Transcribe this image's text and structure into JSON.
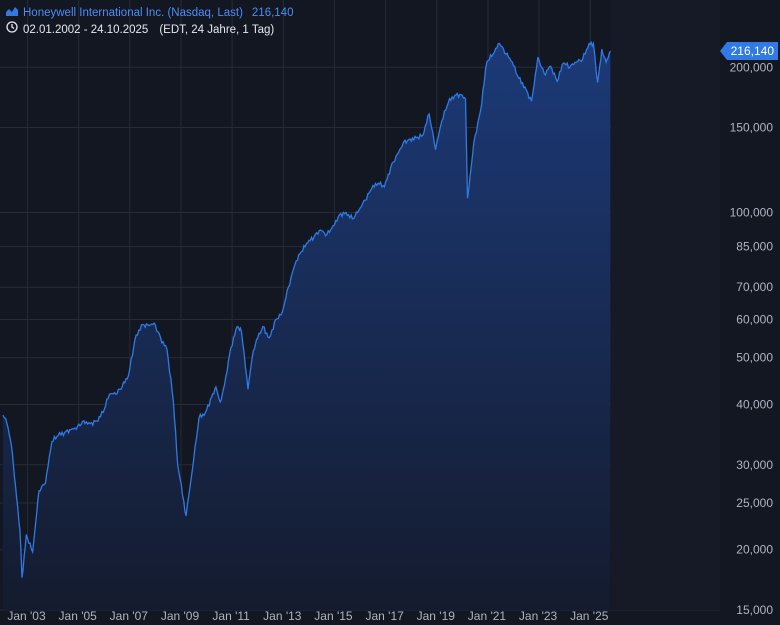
{
  "header": {
    "title": "Honeywell International Inc. (Nasdaq, Last)",
    "last_value": "216,140",
    "date_range": "02.01.2002 - 24.10.2025",
    "meta": "(EDT, 24 Jahre, 1 Tag)",
    "icons": {
      "series": "area-chart-icon",
      "time": "clock-icon"
    }
  },
  "colors": {
    "background": "#131722",
    "line": "#2f7ae5",
    "area_top": "#1c3a78",
    "area_bottom": "#141b2e",
    "grid": "#262b38",
    "price_tag": "#2f7ae5"
  },
  "chart_data": {
    "type": "area",
    "y_scale": "log",
    "ylim": [
      15000,
      230000
    ],
    "xlim": [
      "2002-01-02",
      "2025-10-24"
    ],
    "x_ticks": [
      "Jan '03",
      "Jan '05",
      "Jan '07",
      "Jan '09",
      "Jan '11",
      "Jan '13",
      "Jan '15",
      "Jan '17",
      "Jan '19",
      "Jan '21",
      "Jan '23",
      "Jan '25"
    ],
    "y_ticks": [
      {
        "value": 15000,
        "label": "15,000"
      },
      {
        "value": 20000,
        "label": "20,000"
      },
      {
        "value": 25000,
        "label": "25,000"
      },
      {
        "value": 30000,
        "label": "30,000"
      },
      {
        "value": 40000,
        "label": "40,000"
      },
      {
        "value": 50000,
        "label": "50,000"
      },
      {
        "value": 60000,
        "label": "60,000"
      },
      {
        "value": 70000,
        "label": "70,000"
      },
      {
        "value": 85000,
        "label": "85,000"
      },
      {
        "value": 100000,
        "label": "100,000"
      },
      {
        "value": 150000,
        "label": "150,000"
      },
      {
        "value": 200000,
        "label": "200,000"
      }
    ],
    "last_price": {
      "value": 216140,
      "label": "216,140"
    },
    "series": [
      {
        "x": [
          "2002-01",
          "2002-03",
          "2002-05",
          "2002-07",
          "2002-09",
          "2002-10",
          "2002-12",
          "2003-03",
          "2003-06",
          "2003-09",
          "2003-12",
          "2004-03",
          "2004-06",
          "2004-09",
          "2004-12",
          "2005-03",
          "2005-06",
          "2005-09",
          "2005-12",
          "2006-03",
          "2006-06",
          "2006-09",
          "2006-12",
          "2007-03",
          "2007-06",
          "2007-09",
          "2007-12",
          "2008-03",
          "2008-06",
          "2008-09",
          "2008-11",
          "2009-03",
          "2009-06",
          "2009-09",
          "2009-12",
          "2010-03",
          "2010-05",
          "2010-07",
          "2010-09",
          "2010-12",
          "2011-03",
          "2011-05",
          "2011-08",
          "2011-10",
          "2011-12",
          "2012-03",
          "2012-06",
          "2012-09",
          "2012-12",
          "2013-03",
          "2013-06",
          "2013-09",
          "2013-12",
          "2014-03",
          "2014-06",
          "2014-09",
          "2014-12",
          "2015-03",
          "2015-06",
          "2015-09",
          "2015-12",
          "2016-03",
          "2016-06",
          "2016-09",
          "2016-12",
          "2017-03",
          "2017-06",
          "2017-09",
          "2017-12",
          "2018-03",
          "2018-06",
          "2018-09",
          "2018-12",
          "2019-03",
          "2019-06",
          "2019-09",
          "2019-12",
          "2020-02",
          "2020-03",
          "2020-06",
          "2020-09",
          "2020-12",
          "2021-03",
          "2021-06",
          "2021-09",
          "2021-12",
          "2022-03",
          "2022-06",
          "2022-09",
          "2022-12",
          "2023-03",
          "2023-06",
          "2023-09",
          "2023-12",
          "2024-03",
          "2024-06",
          "2024-09",
          "2024-12",
          "2025-02",
          "2025-04",
          "2025-06",
          "2025-08",
          "2025-10"
        ],
        "y": [
          38000,
          36500,
          33000,
          27000,
          22000,
          17500,
          21500,
          19800,
          26500,
          27500,
          33500,
          34500,
          35000,
          35500,
          36000,
          37000,
          36500,
          37000,
          38500,
          42000,
          42000,
          43500,
          46000,
          54500,
          58500,
          58500,
          59000,
          55000,
          52000,
          40500,
          30000,
          23500,
          29500,
          37500,
          38500,
          41500,
          43500,
          40500,
          44000,
          52500,
          58000,
          56500,
          43000,
          50000,
          54500,
          58000,
          55000,
          60000,
          62000,
          70000,
          78000,
          83000,
          86500,
          89000,
          92000,
          90000,
          94000,
          99000,
          100000,
          97000,
          101000,
          106000,
          112000,
          115000,
          113000,
          124000,
          132000,
          140000,
          142000,
          143000,
          144500,
          160000,
          135000,
          155000,
          169000,
          175000,
          175500,
          172000,
          107000,
          140000,
          162000,
          205000,
          213000,
          224000,
          213000,
          205000,
          190000,
          182000,
          170000,
          210000,
          194000,
          201000,
          187000,
          204000,
          200000,
          205000,
          208000,
          224000,
          224000,
          186000,
          218000,
          205000,
          216140
        ]
      }
    ]
  }
}
